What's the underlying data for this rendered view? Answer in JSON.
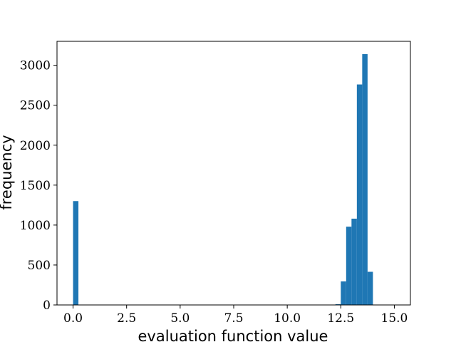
{
  "chart_data": {
    "type": "bar",
    "title": "",
    "xlabel": "evaluation function value",
    "ylabel": "frequency",
    "xlim": [
      -0.75,
      15.75
    ],
    "ylim": [
      0,
      3300
    ],
    "grid": false,
    "legend": "none",
    "bar_color": "#1f77b4",
    "bin_width": 0.25,
    "bins": [
      {
        "x0": 0.0,
        "x1": 0.25,
        "count": 1300
      },
      {
        "x0": 12.25,
        "x1": 12.5,
        "count": 10
      },
      {
        "x0": 12.5,
        "x1": 12.75,
        "count": 295
      },
      {
        "x0": 12.75,
        "x1": 13.0,
        "count": 980
      },
      {
        "x0": 13.0,
        "x1": 13.25,
        "count": 1080
      },
      {
        "x0": 13.25,
        "x1": 13.5,
        "count": 2760
      },
      {
        "x0": 13.5,
        "x1": 13.75,
        "count": 3140
      },
      {
        "x0": 13.75,
        "x1": 14.0,
        "count": 415
      }
    ],
    "x_ticks": [
      {
        "value": 0.0,
        "label": "0.0"
      },
      {
        "value": 2.5,
        "label": "2.5"
      },
      {
        "value": 5.0,
        "label": "5.0"
      },
      {
        "value": 7.5,
        "label": "7.5"
      },
      {
        "value": 10.0,
        "label": "10.0"
      },
      {
        "value": 12.5,
        "label": "12.5"
      },
      {
        "value": 15.0,
        "label": "15.0"
      }
    ],
    "y_ticks": [
      {
        "value": 0,
        "label": "0"
      },
      {
        "value": 500,
        "label": "500"
      },
      {
        "value": 1000,
        "label": "1000"
      },
      {
        "value": 1500,
        "label": "1500"
      },
      {
        "value": 2000,
        "label": "2000"
      },
      {
        "value": 2500,
        "label": "2500"
      },
      {
        "value": 3000,
        "label": "3000"
      }
    ]
  }
}
